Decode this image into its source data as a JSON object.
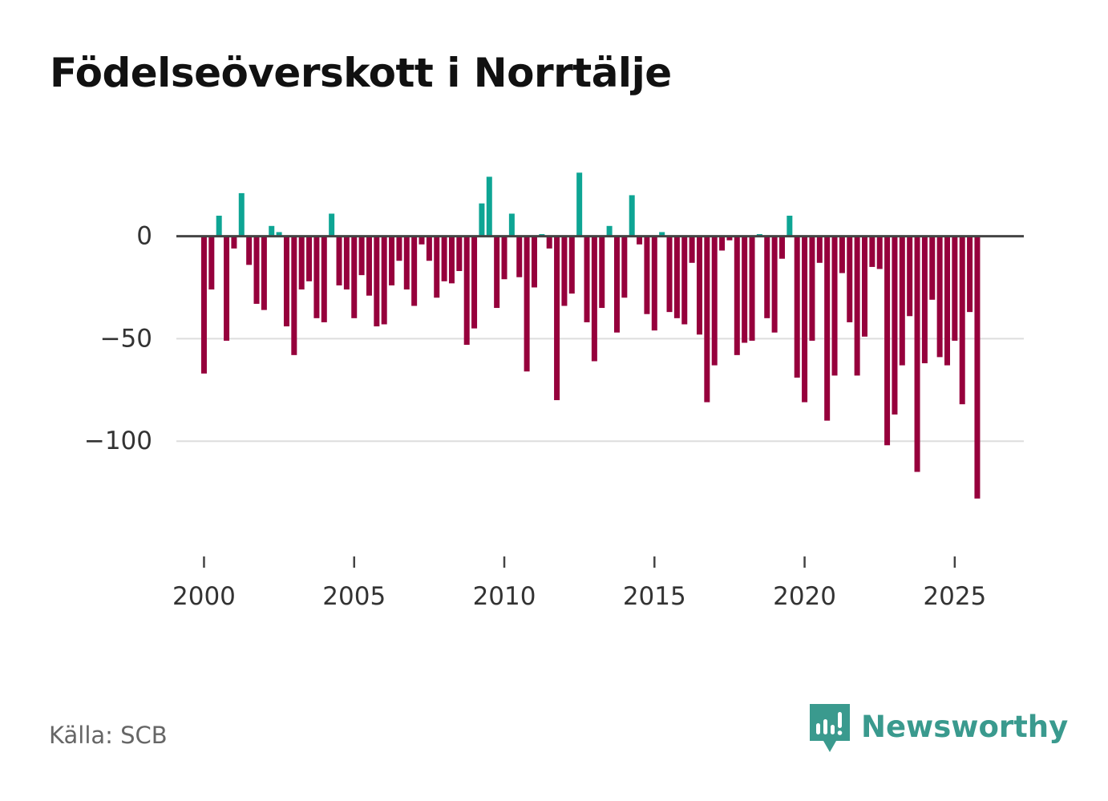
{
  "title": "Födelseöverskott i Norrtälje",
  "source": "Källa: SCB",
  "brand": {
    "name": "Newsworthy",
    "icon": "newsworthy-logo-icon",
    "color": "#3a9a8e"
  },
  "chart_data": {
    "type": "bar",
    "title": "Födelseöverskott i Norrtälje",
    "xlabel": "",
    "ylabel": "",
    "ylim": [
      -150,
      37
    ],
    "xlim": [
      1999.08,
      2027.3
    ],
    "grid": true,
    "yticks": [
      0,
      -50,
      -100
    ],
    "ytick_labels": [
      "0",
      "−50",
      "−100"
    ],
    "xticks": [
      2000,
      2005,
      2010,
      2015,
      2020,
      2025
    ],
    "xtick_labels": [
      "2000",
      "2005",
      "2010",
      "2015",
      "2020",
      "2025"
    ],
    "colors": {
      "positive": "#0ea594",
      "negative": "#96003c",
      "axis": "#444444",
      "grid": "#dddddd"
    },
    "series": [
      {
        "name": "Födelseöverskott",
        "start": 2000.0,
        "step": 0.25,
        "values": [
          -67,
          -26,
          10,
          -51,
          -6,
          21,
          -14,
          -33,
          -36,
          5,
          2,
          -44,
          -58,
          -26,
          -22,
          -40,
          -42,
          11,
          -24,
          -26,
          -40,
          -19,
          -29,
          -44,
          -43,
          -24,
          -12,
          -26,
          -34,
          -4,
          -12,
          -30,
          -22,
          -23,
          -17,
          -53,
          -45,
          16,
          29,
          -35,
          -21,
          11,
          -20,
          -66,
          -25,
          1,
          -6,
          -80,
          -34,
          -28,
          31,
          -42,
          -61,
          -35,
          5,
          -47,
          -30,
          20,
          -4,
          -38,
          -46,
          2,
          -37,
          -40,
          -43,
          -13,
          -48,
          -81,
          -63,
          -7,
          -2,
          -58,
          -52,
          -51,
          1,
          -40,
          -47,
          -11,
          10,
          -69,
          -81,
          -51,
          -13,
          -90,
          -68,
          -18,
          -42,
          -68,
          -49,
          -15,
          -16,
          -102,
          -87,
          -63,
          -39,
          -115,
          -62,
          -31,
          -59,
          -63,
          -51,
          -82,
          -37,
          -128
        ]
      }
    ]
  }
}
